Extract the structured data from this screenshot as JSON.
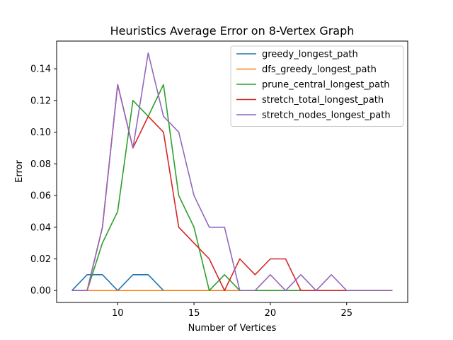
{
  "chart_data": {
    "type": "line",
    "title": "Heuristics Average Error on 8-Vertex Graph",
    "xlabel": "Number of Vertices",
    "ylabel": "Error",
    "xlim": [
      6,
      29
    ],
    "ylim": [
      -0.0075,
      0.1575
    ],
    "xticks": [
      10,
      15,
      20,
      25
    ],
    "yticks": [
      0.0,
      0.02,
      0.04,
      0.06,
      0.08,
      0.1,
      0.12,
      0.14
    ],
    "ytick_labels": [
      "0.00",
      "0.02",
      "0.04",
      "0.06",
      "0.08",
      "0.10",
      "0.12",
      "0.14"
    ],
    "xtick_labels": [
      "10",
      "15",
      "20",
      "25"
    ],
    "grid": false,
    "legend_position": "upper right",
    "x": [
      7,
      8,
      9,
      10,
      11,
      12,
      13,
      14,
      15,
      16,
      17,
      18,
      19,
      20,
      21,
      22,
      23,
      24,
      25,
      26,
      27,
      28
    ],
    "series": [
      {
        "name": "greedy_longest_path",
        "color": "#1f77b4",
        "values": [
          0,
          0.01,
          0.01,
          0,
          0.01,
          0.01,
          0,
          0,
          0,
          0,
          0,
          0,
          0,
          0,
          0,
          0,
          0,
          0,
          0,
          0,
          0,
          0
        ]
      },
      {
        "name": "dfs_greedy_longest_path",
        "color": "#ff7f0e",
        "values": [
          0,
          0,
          0,
          0,
          0,
          0,
          0,
          0,
          0,
          0,
          0,
          0,
          0,
          0,
          0,
          0,
          0,
          0,
          0,
          0,
          0,
          0
        ]
      },
      {
        "name": "prune_central_longest_path",
        "color": "#2ca02c",
        "values": [
          0,
          0,
          0.03,
          0.05,
          0.12,
          0.11,
          0.13,
          0.06,
          0.04,
          0,
          0.01,
          0,
          0,
          0,
          0,
          0,
          0,
          0,
          0,
          0,
          0,
          0
        ]
      },
      {
        "name": "stretch_total_longest_path",
        "color": "#d62728",
        "values": [
          0,
          0,
          0.04,
          0.13,
          0.09,
          0.11,
          0.1,
          0.04,
          0.03,
          0.02,
          0,
          0.02,
          0.01,
          0.02,
          0.02,
          0,
          0,
          0,
          0,
          0,
          0,
          0
        ]
      },
      {
        "name": "stretch_nodes_longest_path",
        "color": "#9467bd",
        "values": [
          0,
          0,
          0.04,
          0.13,
          0.09,
          0.15,
          0.11,
          0.1,
          0.06,
          0.04,
          0.04,
          0,
          0,
          0.01,
          0,
          0.01,
          0,
          0.01,
          0,
          0,
          0,
          0
        ]
      }
    ]
  }
}
